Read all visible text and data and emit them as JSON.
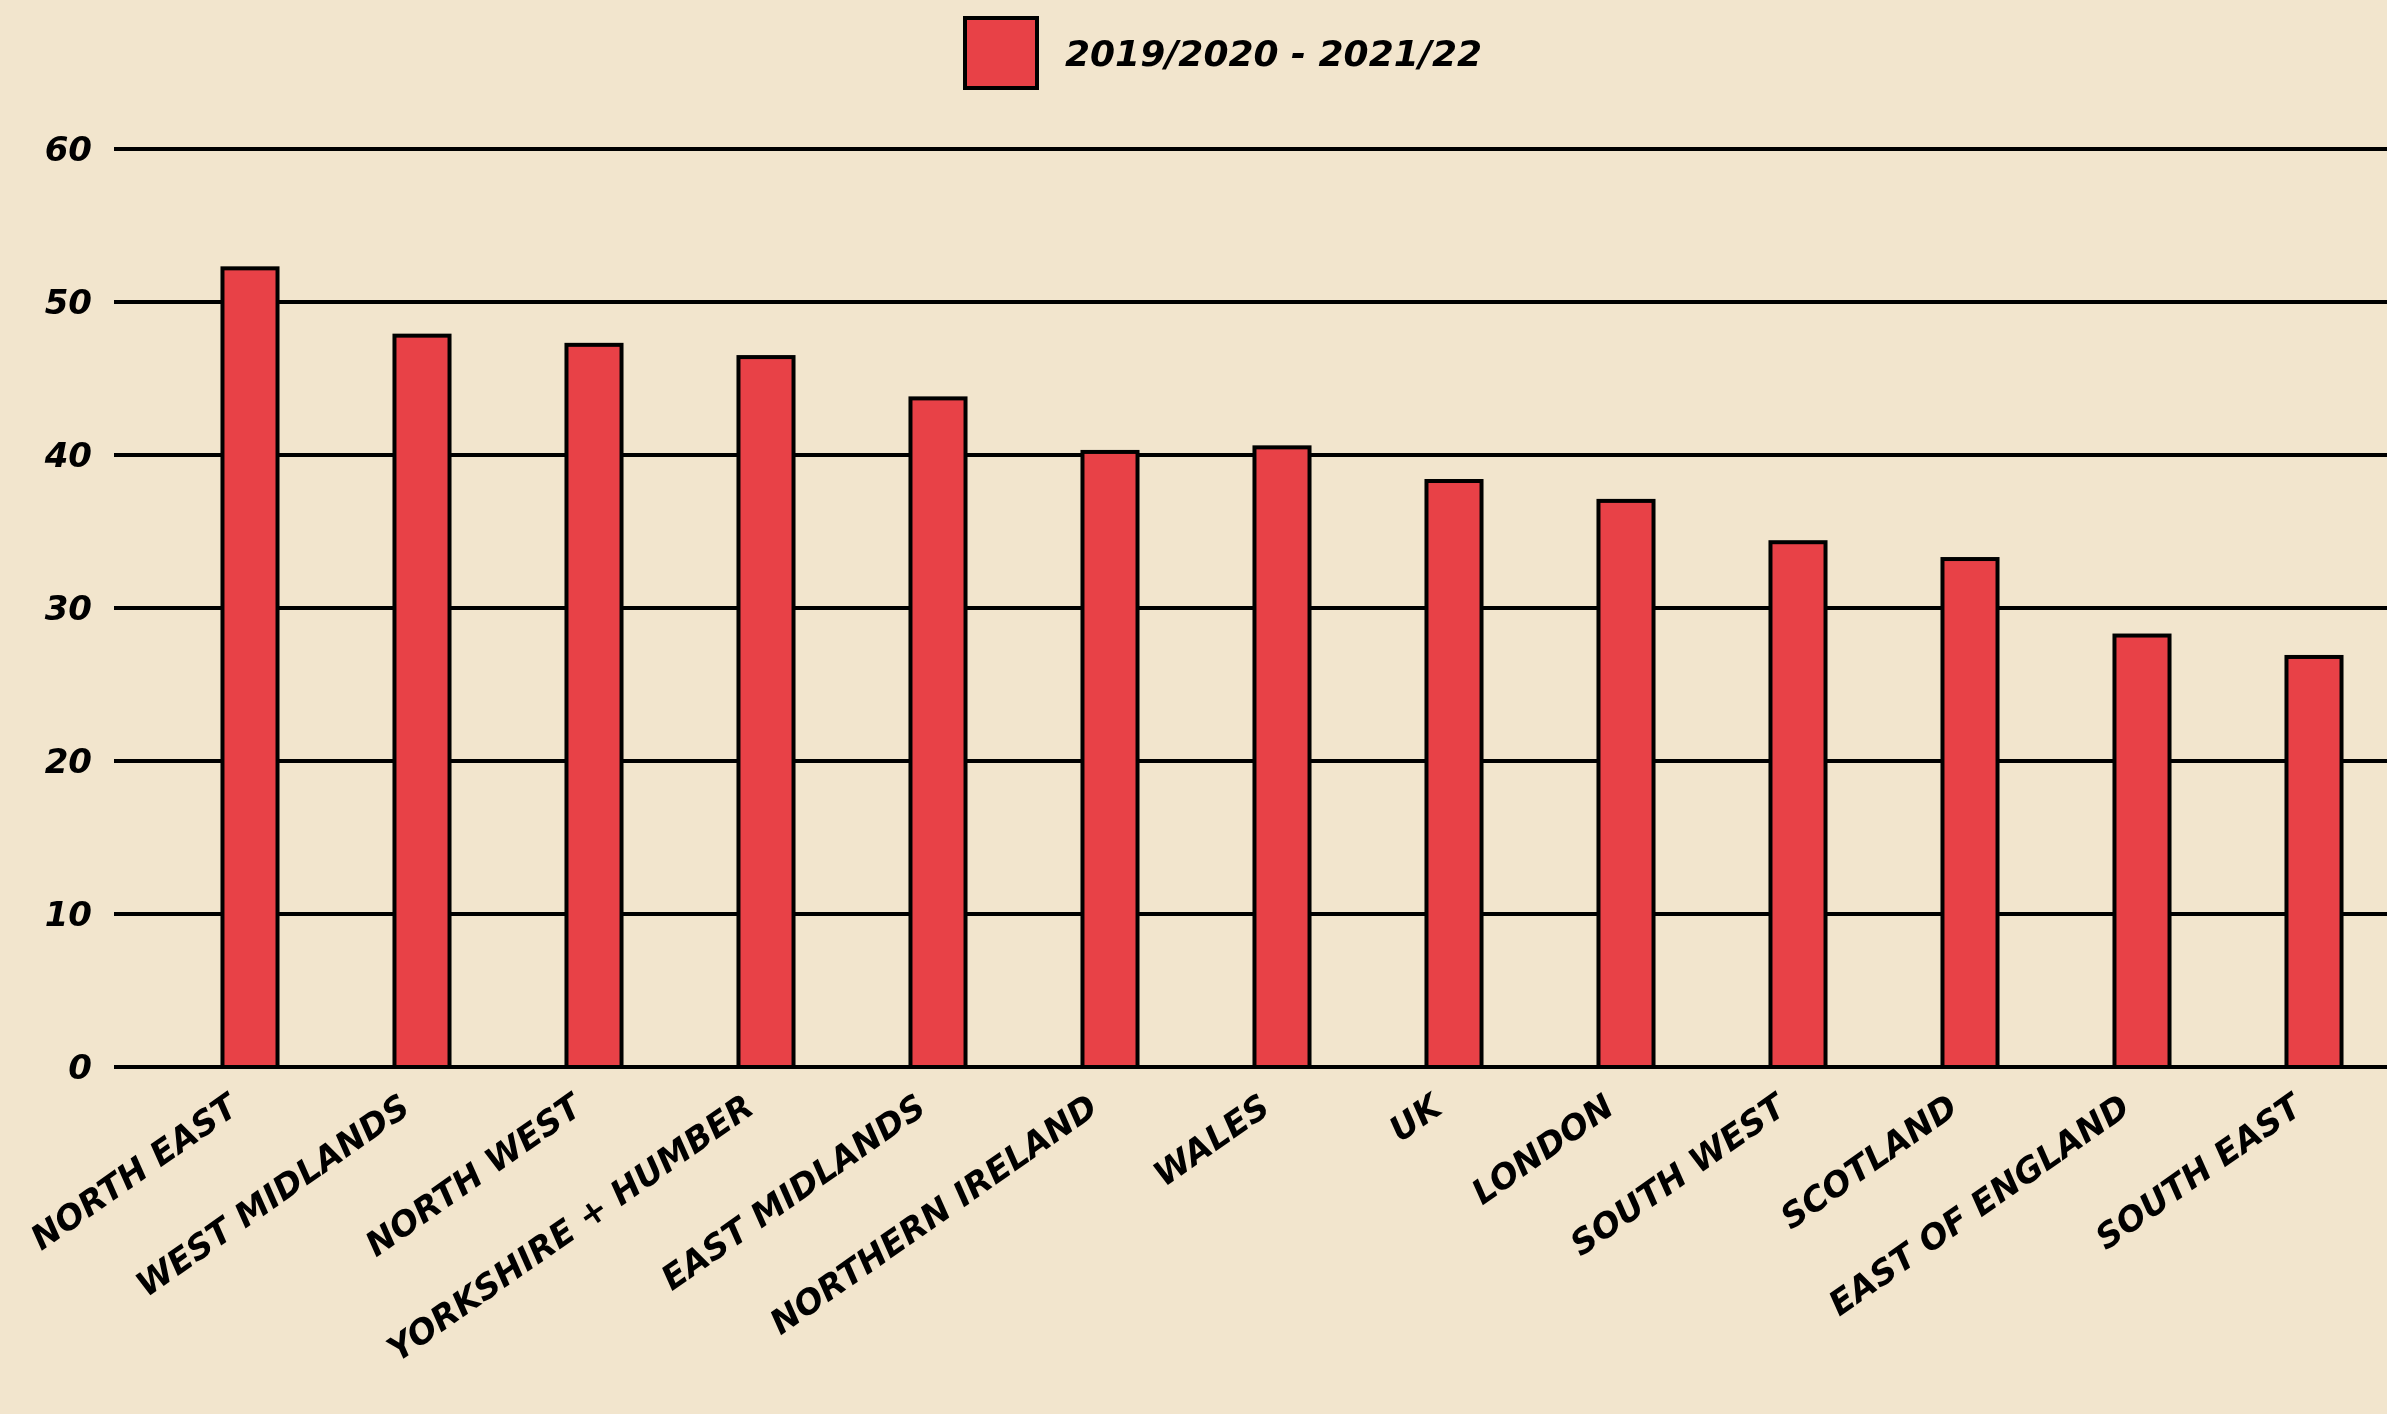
{
  "chart_data": {
    "type": "bar",
    "categories": [
      "NORTH EAST",
      "WEST MIDLANDS",
      "NORTH WEST",
      "YORKSHIRE + HUMBER",
      "EAST MIDLANDS",
      "NORTHERN IRELAND",
      "WALES",
      "UK",
      "LONDON",
      "SOUTH WEST",
      "SCOTLAND",
      "EAST OF ENGLAND",
      "SOUTH EAST"
    ],
    "series": [
      {
        "name": "2019/2020 - 2021/22",
        "color": "#e84147",
        "values": [
          52.2,
          47.8,
          47.2,
          46.4,
          43.7,
          40.2,
          40.5,
          38.3,
          37.0,
          34.3,
          33.2,
          28.2,
          26.8
        ]
      }
    ],
    "ylim": [
      0,
      60
    ],
    "yticks": [
      0,
      10,
      20,
      30,
      40,
      50,
      60
    ],
    "grid": "y",
    "legend": "top"
  }
}
